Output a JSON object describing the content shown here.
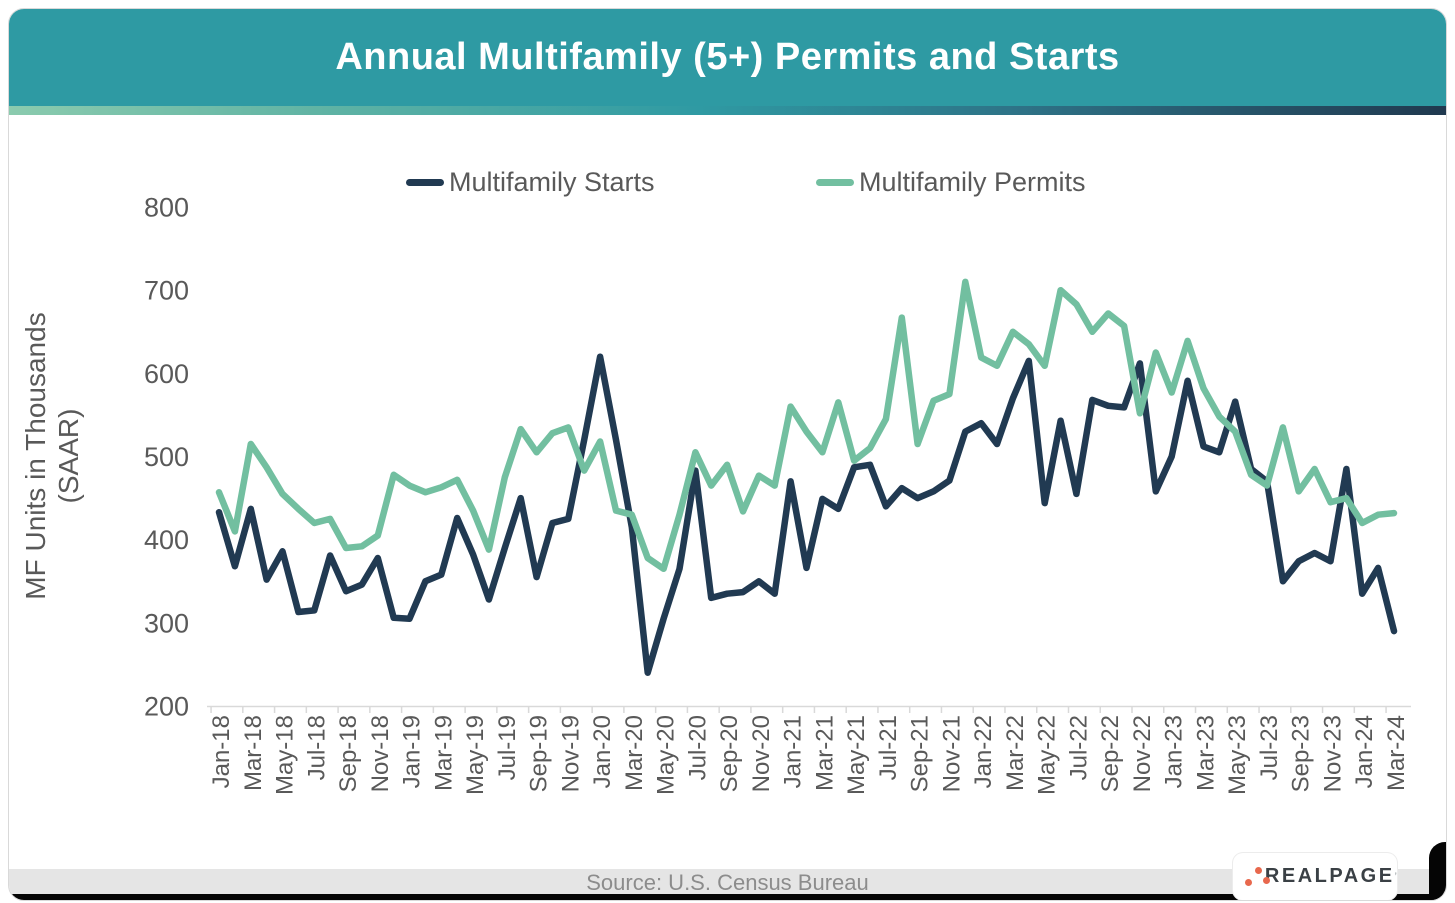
{
  "header": {
    "title": "Annual Multifamily (5+) Permits and Starts"
  },
  "legend": [
    {
      "label": "Multifamily Starts",
      "color": "#213A52"
    },
    {
      "label": "Multifamily Permits",
      "color": "#72BFA0"
    }
  ],
  "chart_data": {
    "type": "line",
    "title": "Annual Multifamily (5+) Permits and Starts",
    "ylabel_line1": "MF Units in Thousands",
    "ylabel_line2": "(SAAR)",
    "ylim": [
      200,
      800
    ],
    "yticks": [
      800,
      700,
      600,
      500,
      400,
      300,
      200
    ],
    "grid": false,
    "legend_position": "top",
    "x_start": "Jan-18",
    "x_end": "Mar-24",
    "x_frequency": "monthly",
    "x_labels": [
      "Jan-18",
      "Mar-18",
      "May-18",
      "Jul-18",
      "Sep-18",
      "Nov-18",
      "Jan-19",
      "Mar-19",
      "May-19",
      "Jul-19",
      "Sep-19",
      "Nov-19",
      "Jan-20",
      "Mar-20",
      "May-20",
      "Jul-20",
      "Sep-20",
      "Nov-20",
      "Jan-21",
      "Mar-21",
      "May-21",
      "Jul-21",
      "Sep-21",
      "Nov-21",
      "Jan-22",
      "Mar-22",
      "May-22",
      "Jul-22",
      "Sep-22",
      "Nov-22",
      "Jan-23",
      "Mar-23",
      "May-23",
      "Jul-23",
      "Sep-23",
      "Nov-23",
      "Jan-24",
      "Mar-24"
    ],
    "series": [
      {
        "name": "Multifamily Starts",
        "color": "#213A52",
        "values": [
          433,
          368,
          437,
          352,
          386,
          313,
          315,
          381,
          338,
          346,
          378,
          306,
          305,
          350,
          358,
          426,
          382,
          328,
          390,
          450,
          355,
          420,
          425,
          520,
          620,
          520,
          415,
          240,
          305,
          365,
          483,
          330,
          335,
          337,
          350,
          335,
          470,
          366,
          449,
          437,
          487,
          490,
          440,
          462,
          450,
          458,
          471,
          530,
          540,
          515,
          570,
          615,
          444,
          543,
          455,
          568,
          561,
          559,
          612,
          458,
          500,
          591,
          512,
          505,
          566,
          485,
          470,
          350,
          374,
          384,
          374,
          485,
          335,
          366,
          290
        ]
      },
      {
        "name": "Multifamily Permits",
        "color": "#72BFA0",
        "values": [
          457,
          410,
          515,
          487,
          455,
          437,
          420,
          425,
          390,
          392,
          405,
          478,
          465,
          457,
          463,
          472,
          435,
          388,
          475,
          533,
          505,
          528,
          535,
          483,
          518,
          435,
          430,
          378,
          365,
          430,
          505,
          465,
          490,
          434,
          477,
          465,
          560,
          530,
          505,
          565,
          495,
          510,
          545,
          667,
          515,
          567,
          575,
          710,
          619,
          609,
          650,
          635,
          609,
          700,
          683,
          650,
          672,
          657,
          552,
          625,
          577,
          639,
          582,
          548,
          530,
          478,
          465,
          535,
          458,
          485,
          445,
          450,
          420,
          430,
          432
        ]
      }
    ],
    "axis_color": "#D9D9D9",
    "tick_text_color": "#595959"
  },
  "footer": {
    "source": "Source: U.S. Census Bureau",
    "logo_text": "REALPAGE",
    "logo_mark": "’"
  }
}
